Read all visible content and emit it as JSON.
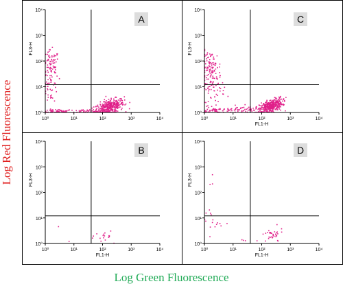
{
  "y_axis_title": "Log Red Fluorescence",
  "x_axis_title": "Log Green Fluorescence",
  "colors": {
    "dots": "#e0208a",
    "y_title": "#e02020",
    "x_title": "#1faa55",
    "frame": "#000000",
    "badge_bg": "#dddddd"
  },
  "chart_data": [
    {
      "type": "scatter",
      "panel": "A",
      "xlabel": "",
      "ylabel": "FL3-H",
      "xscale": "log",
      "yscale": "log",
      "xlim": [
        1,
        10000
      ],
      "ylim": [
        1,
        10000
      ],
      "x_ticks": [
        "10⁰",
        "10¹",
        "10²",
        "10³",
        "10⁴"
      ],
      "y_ticks": [
        "10⁰",
        "10¹",
        "10²",
        "10³",
        "10⁴"
      ],
      "gates": {
        "x": 40,
        "y": 12
      },
      "clusters": [
        {
          "cx": 170,
          "cy": 1.6,
          "sx": 0.26,
          "sy": 0.16,
          "n": 380,
          "corr": 0.5
        },
        {
          "cx": 1.6,
          "cy": 70,
          "sx": 0.14,
          "sy": 0.28,
          "n": 70
        },
        {
          "cx": 1.6,
          "cy": 12,
          "sx": 0.12,
          "sy": 0.35,
          "n": 45
        },
        {
          "cx": 2.5,
          "cy": 1.1,
          "sx": 0.25,
          "sy": 0.04,
          "n": 60
        },
        {
          "cx": 30,
          "cy": 1.1,
          "sx": 0.4,
          "sy": 0.04,
          "n": 50
        }
      ]
    },
    {
      "type": "scatter",
      "panel": "C",
      "xlabel": "FL1-H",
      "ylabel": "FL3-H",
      "xscale": "log",
      "yscale": "log",
      "xlim": [
        1,
        10000
      ],
      "ylim": [
        1,
        10000
      ],
      "x_ticks": [
        "10⁰",
        "10¹",
        "10²",
        "10³",
        "10⁴"
      ],
      "y_ticks": [
        "10⁰",
        "10¹",
        "10²",
        "10³",
        "10⁴"
      ],
      "gates": {
        "x": 40,
        "y": 12
      },
      "clusters": [
        {
          "cx": 210,
          "cy": 1.8,
          "sx": 0.2,
          "sy": 0.14,
          "n": 380,
          "corr": 0.5
        },
        {
          "cx": 1.7,
          "cy": 60,
          "sx": 0.18,
          "sy": 0.3,
          "n": 90
        },
        {
          "cx": 2,
          "cy": 10,
          "sx": 0.2,
          "sy": 0.35,
          "n": 70
        },
        {
          "cx": 3,
          "cy": 1.2,
          "sx": 0.3,
          "sy": 0.05,
          "n": 60
        },
        {
          "cx": 40,
          "cy": 1.3,
          "sx": 0.45,
          "sy": 0.07,
          "n": 60
        }
      ]
    },
    {
      "type": "scatter",
      "panel": "B",
      "xlabel": "FL1-H",
      "ylabel": "FL3-H",
      "xscale": "log",
      "yscale": "log",
      "xlim": [
        1,
        10000
      ],
      "ylim": [
        1,
        10000
      ],
      "x_ticks": [
        "10⁰",
        "10¹",
        "10²",
        "10³",
        "10⁴"
      ],
      "y_ticks": [
        "10⁰",
        "10¹",
        "10²",
        "10³",
        "10⁴"
      ],
      "gates": {
        "x": 40,
        "y": 12
      },
      "clusters": [
        {
          "cx": 150,
          "cy": 2,
          "sx": 0.2,
          "sy": 0.15,
          "n": 16
        },
        {
          "cx": 2.4,
          "cy": 3.5,
          "sx": 0.05,
          "sy": 0.05,
          "n": 1
        },
        {
          "cx": 40,
          "cy": 1.2,
          "sx": 0.3,
          "sy": 0.05,
          "n": 2
        }
      ]
    },
    {
      "type": "scatter",
      "panel": "D",
      "xlabel": "FL1-H",
      "ylabel": "FL3-H",
      "xscale": "log",
      "yscale": "log",
      "xlim": [
        1,
        10000
      ],
      "ylim": [
        1,
        10000
      ],
      "x_ticks": [
        "10⁰",
        "10¹",
        "10²",
        "10³",
        "10⁴"
      ],
      "y_ticks": [
        "10⁰",
        "10¹",
        "10²",
        "10³",
        "10⁴"
      ],
      "gates": {
        "x": 40,
        "y": 12
      },
      "clusters": [
        {
          "cx": 230,
          "cy": 2,
          "sx": 0.2,
          "sy": 0.15,
          "n": 32
        },
        {
          "cx": 1.8,
          "cy": 8,
          "sx": 0.18,
          "sy": 0.3,
          "n": 16
        },
        {
          "cx": 1.8,
          "cy": 150,
          "sx": 0.08,
          "sy": 0.2,
          "n": 3
        },
        {
          "cx": 25,
          "cy": 1.2,
          "sx": 0.3,
          "sy": 0.05,
          "n": 4
        }
      ]
    }
  ]
}
